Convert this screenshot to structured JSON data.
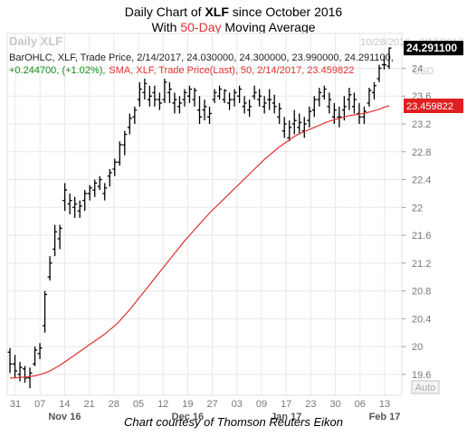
{
  "title_line1": {
    "pre": "Daily Chart of ",
    "ticker": "XLF",
    "post": " since October 2016"
  },
  "title_line2": {
    "pre": "With ",
    "highlight": "50-Day",
    "post": " Moving Average"
  },
  "footer": "Chart courtesy of Thomson Reuters Eikon",
  "colors": {
    "price": "#000000",
    "sma": "#e03030",
    "grid": "#e8e8e8",
    "axis_text": "#777777",
    "last_tag_bg": "#000000",
    "sma_tag_bg": "#e02020",
    "change_text": "#1a8a1a",
    "sma_info_text": "#e03030",
    "watermark": "#c8c8c8"
  },
  "chart_data": {
    "type": "ohlc",
    "watermark_label": "Daily XLF",
    "date_range": "10/28/2016 - 2/17/2017",
    "info_line1": "BarOHLC, XLF, Trade Price, 2/14/2017, 24.030000, 24.300000, 23.990000, 24.291100,",
    "info_line2_change": "+0.244700, (+1.02%),",
    "info_line2_sma": "SMA, XLF, Trade Price(Last), 50, 2/14/2017, 23.459822",
    "usd_label": "USD",
    "auto_label": "Auto",
    "last_price_label": "24.291100",
    "sma_last_label": "23.459822",
    "ylim": [
      19.3,
      24.5
    ],
    "y_ticks": [
      "19.6",
      "20",
      "20.4",
      "20.8",
      "21.2",
      "21.6",
      "22",
      "22.4",
      "22.8",
      "23.2",
      "23.6",
      "24"
    ],
    "x_day_labels": [
      "31",
      "07",
      "14",
      "21",
      "28",
      "05",
      "12",
      "19",
      "27",
      "03",
      "09",
      "17",
      "23",
      "30",
      "06",
      "13"
    ],
    "x_month_labels": [
      "Nov 16",
      "Dec 16",
      "Jan 17",
      "Feb 17"
    ],
    "x_month_anchor_index": [
      2,
      7,
      11,
      15
    ],
    "bars": [
      [
        19.92,
        19.98,
        19.62,
        19.75
      ],
      [
        19.75,
        19.88,
        19.55,
        19.65
      ],
      [
        19.6,
        19.78,
        19.5,
        19.7
      ],
      [
        19.68,
        19.72,
        19.48,
        19.55
      ],
      [
        19.55,
        19.7,
        19.4,
        19.62
      ],
      [
        19.75,
        20.0,
        19.72,
        19.95
      ],
      [
        19.9,
        20.05,
        19.82,
        19.98
      ],
      [
        20.3,
        20.8,
        20.2,
        20.75
      ],
      [
        21.0,
        21.3,
        20.95,
        21.2
      ],
      [
        21.4,
        21.75,
        21.3,
        21.65
      ],
      [
        21.55,
        21.75,
        21.4,
        21.7
      ],
      [
        22.1,
        22.35,
        21.95,
        22.25
      ],
      [
        22.05,
        22.2,
        21.9,
        22.1
      ],
      [
        22.0,
        22.15,
        21.85,
        22.05
      ],
      [
        21.95,
        22.1,
        21.85,
        22.02
      ],
      [
        22.1,
        22.25,
        21.95,
        22.2
      ],
      [
        22.2,
        22.32,
        22.1,
        22.28
      ],
      [
        22.25,
        22.4,
        22.15,
        22.35
      ],
      [
        22.3,
        22.45,
        22.25,
        22.4
      ],
      [
        22.2,
        22.35,
        22.1,
        22.28
      ],
      [
        22.45,
        22.55,
        22.3,
        22.5
      ],
      [
        22.55,
        22.7,
        22.45,
        22.65
      ],
      [
        22.65,
        22.95,
        22.6,
        22.9
      ],
      [
        22.9,
        23.1,
        22.75,
        23.05
      ],
      [
        23.15,
        23.35,
        23.05,
        23.28
      ],
      [
        23.3,
        23.45,
        23.2,
        23.4
      ],
      [
        23.55,
        23.8,
        23.45,
        23.7
      ],
      [
        23.65,
        23.85,
        23.55,
        23.78
      ],
      [
        23.55,
        23.75,
        23.45,
        23.6
      ],
      [
        23.65,
        23.75,
        23.45,
        23.55
      ],
      [
        23.55,
        23.65,
        23.4,
        23.5
      ],
      [
        23.55,
        23.85,
        23.5,
        23.8
      ],
      [
        23.65,
        23.8,
        23.5,
        23.7
      ],
      [
        23.5,
        23.65,
        23.35,
        23.55
      ],
      [
        23.45,
        23.6,
        23.35,
        23.5
      ],
      [
        23.55,
        23.7,
        23.45,
        23.65
      ],
      [
        23.6,
        23.75,
        23.5,
        23.7
      ],
      [
        23.55,
        23.72,
        23.45,
        23.68
      ],
      [
        23.4,
        23.6,
        23.2,
        23.3
      ],
      [
        23.4,
        23.55,
        23.25,
        23.45
      ],
      [
        23.3,
        23.45,
        23.2,
        23.35
      ],
      [
        23.55,
        23.7,
        23.5,
        23.65
      ],
      [
        23.6,
        23.75,
        23.55,
        23.7
      ],
      [
        23.55,
        23.7,
        23.5,
        23.68
      ],
      [
        23.5,
        23.65,
        23.4,
        23.55
      ],
      [
        23.55,
        23.7,
        23.45,
        23.65
      ],
      [
        23.6,
        23.75,
        23.5,
        23.7
      ],
      [
        23.45,
        23.6,
        23.35,
        23.5
      ],
      [
        23.4,
        23.55,
        23.3,
        23.45
      ],
      [
        23.6,
        23.75,
        23.55,
        23.65
      ],
      [
        23.55,
        23.7,
        23.45,
        23.6
      ],
      [
        23.45,
        23.6,
        23.35,
        23.5
      ],
      [
        23.55,
        23.7,
        23.4,
        23.55
      ],
      [
        23.5,
        23.62,
        23.35,
        23.45
      ],
      [
        23.3,
        23.5,
        23.2,
        23.42
      ],
      [
        23.1,
        23.3,
        23.0,
        23.2
      ],
      [
        23.0,
        23.25,
        22.95,
        23.15
      ],
      [
        23.2,
        23.4,
        23.05,
        23.25
      ],
      [
        23.15,
        23.35,
        23.05,
        23.22
      ],
      [
        23.1,
        23.3,
        23.0,
        23.2
      ],
      [
        23.25,
        23.45,
        23.15,
        23.38
      ],
      [
        23.4,
        23.6,
        23.3,
        23.55
      ],
      [
        23.55,
        23.72,
        23.45,
        23.65
      ],
      [
        23.6,
        23.75,
        23.55,
        23.7
      ],
      [
        23.45,
        23.65,
        23.35,
        23.55
      ],
      [
        23.3,
        23.5,
        23.2,
        23.4
      ],
      [
        23.3,
        23.45,
        23.15,
        23.3
      ],
      [
        23.4,
        23.6,
        23.25,
        23.45
      ],
      [
        23.55,
        23.72,
        23.4,
        23.62
      ],
      [
        23.45,
        23.65,
        23.35,
        23.55
      ],
      [
        23.35,
        23.5,
        23.2,
        23.3
      ],
      [
        23.3,
        23.45,
        23.2,
        23.38
      ],
      [
        23.5,
        23.72,
        23.45,
        23.68
      ],
      [
        23.65,
        23.8,
        23.55,
        23.75
      ],
      [
        23.85,
        24.05,
        23.8,
        24.0
      ],
      [
        24.05,
        24.18,
        23.98,
        24.05
      ],
      [
        24.03,
        24.3,
        23.99,
        24.29
      ]
    ],
    "sma": [
      19.55,
      19.55,
      19.56,
      19.56,
      19.57,
      19.58,
      19.6,
      19.62,
      19.65,
      19.69,
      19.73,
      19.78,
      19.83,
      19.88,
      19.93,
      19.98,
      20.03,
      20.08,
      20.13,
      20.18,
      20.24,
      20.3,
      20.37,
      20.45,
      20.53,
      20.62,
      20.71,
      20.8,
      20.89,
      20.98,
      21.07,
      21.16,
      21.25,
      21.34,
      21.43,
      21.52,
      21.6,
      21.68,
      21.76,
      21.84,
      21.92,
      21.99,
      22.06,
      22.13,
      22.2,
      22.27,
      22.34,
      22.41,
      22.48,
      22.55,
      22.62,
      22.69,
      22.75,
      22.81,
      22.87,
      22.92,
      22.97,
      23.02,
      23.06,
      23.09,
      23.12,
      23.15,
      23.18,
      23.21,
      23.24,
      23.26,
      23.28,
      23.3,
      23.32,
      23.33,
      23.34,
      23.35,
      23.37,
      23.39,
      23.41,
      23.44,
      23.46
    ]
  }
}
